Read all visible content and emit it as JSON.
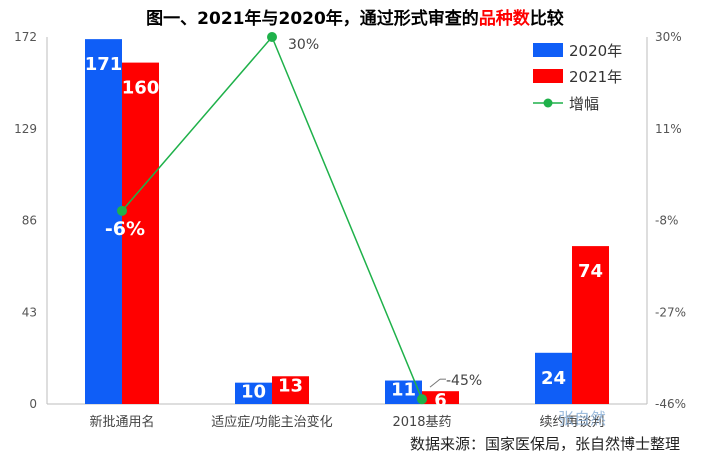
{
  "title": {
    "part1": "图一、2021年与2020年，通过形式审查的",
    "highlight": "品种数",
    "part2": "比较"
  },
  "source": "数据来源：国家医保局，张自然博士整理",
  "watermark": "张自然",
  "colors": {
    "s2020": "#0f5ef7",
    "s2021": "#ff0000",
    "growth": "#1fb14a",
    "highlight": "#ff0000"
  },
  "chart_data": {
    "type": "bar",
    "categories": [
      "新批通用名",
      "适应症/功能主治变化",
      "2018基药",
      "续约再谈判"
    ],
    "series": [
      {
        "name": "2020年",
        "values": [
          171,
          10,
          11,
          24
        ],
        "axis": "left"
      },
      {
        "name": "2021年",
        "values": [
          160,
          13,
          6,
          74
        ],
        "axis": "left"
      },
      {
        "name": "增幅",
        "type": "line",
        "values": [
          -6,
          30,
          -45,
          null
        ],
        "axis": "right",
        "labels": [
          "-6%",
          "30%",
          "-45%",
          ""
        ]
      }
    ],
    "y_left": {
      "min": 0,
      "max": 172,
      "ticks": [
        0,
        43,
        86,
        129,
        172
      ]
    },
    "y_right": {
      "min": -46,
      "max": 30,
      "ticks": [
        "30%",
        "11%",
        "-8%",
        "-27%",
        "-46%"
      ],
      "tick_values": [
        30,
        11,
        -8,
        -27,
        -46
      ]
    },
    "legend": {
      "position": "top-right",
      "entries": [
        "2020年",
        "2021年",
        "增幅"
      ]
    },
    "grid": false
  }
}
